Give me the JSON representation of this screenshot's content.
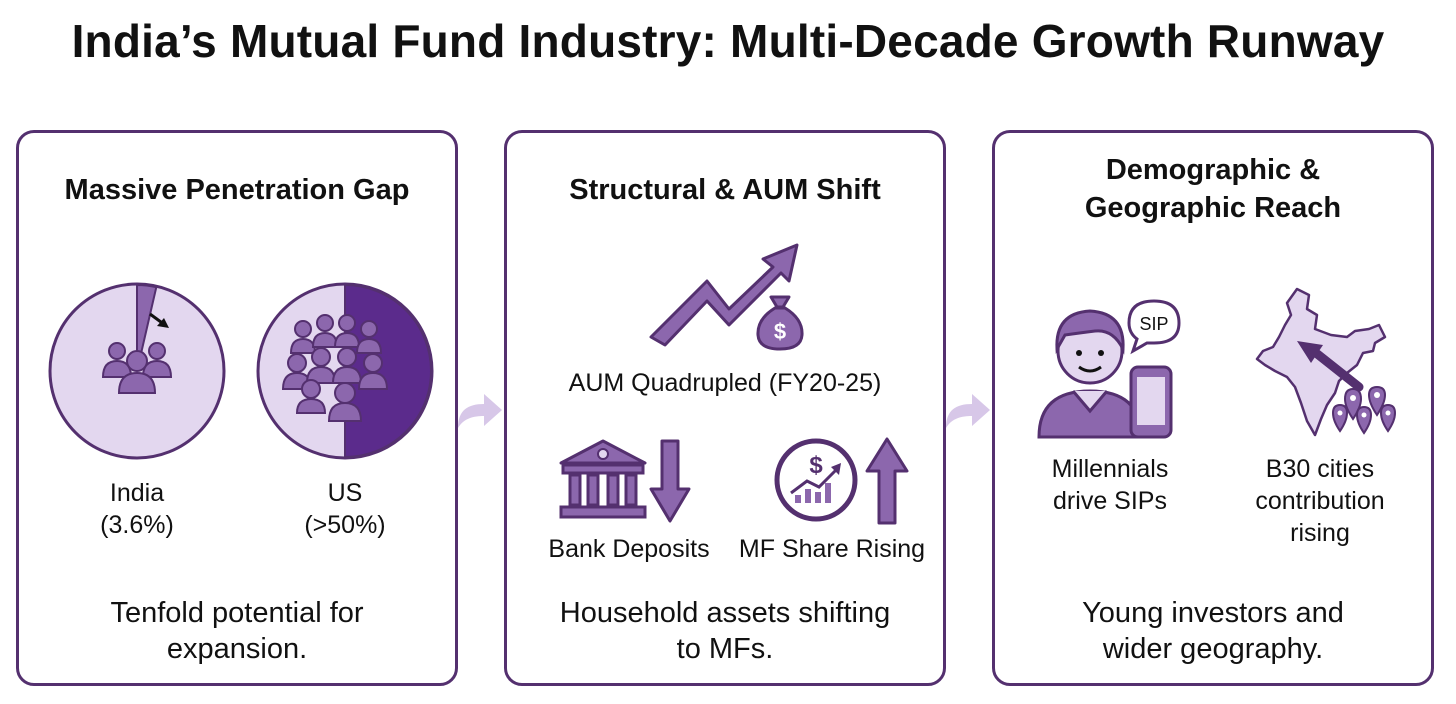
{
  "title": "India’s Mutual Fund Industry: Multi-Decade Growth Runway",
  "colors": {
    "dark": "#54306f",
    "mid": "#8c67ad",
    "light": "#e3d7ef",
    "arrow": "#d7c7e8"
  },
  "panels": [
    {
      "title": "Massive Penetration Gap",
      "india_label": "India",
      "india_value": "(3.6%)",
      "us_label": "US",
      "us_value": "(>50%)",
      "footer_line1": "Tenfold potential for",
      "footer_line2": "expansion."
    },
    {
      "title": "Structural & AUM Shift",
      "aum_label": "AUM Quadrupled (FY20-25)",
      "money_symbol": "$",
      "bank_label": "Bank Deposits",
      "mf_label": "MF Share Rising",
      "footer_line1": "Household assets shifting",
      "footer_line2": "to MFs."
    },
    {
      "title_line1": "Demographic &",
      "title_line2": "Geographic Reach",
      "sip_text": "SIP",
      "millennials_line1": "Millennials",
      "millennials_line2": "drive SIPs",
      "b30_line1": "B30 cities",
      "b30_line2": "contribution",
      "b30_line3": "rising",
      "footer_line1": "Young investors and",
      "footer_line2": "wider geography."
    }
  ],
  "chart_data": {
    "type": "pie",
    "charts": [
      {
        "label": "India",
        "value_pct": 3.6
      },
      {
        "label": "US",
        "value_pct": 50
      }
    ]
  }
}
